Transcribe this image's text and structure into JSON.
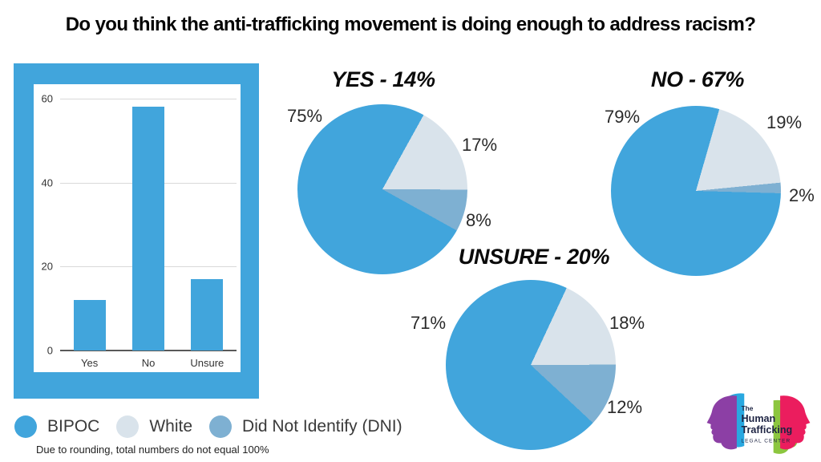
{
  "title": "Do you think the anti-trafficking movement is doing enough to address racism?",
  "colors": {
    "bipoc": "#41A5DC",
    "white": "#D9E3EB",
    "dni": "#7EB0D2"
  },
  "legend": {
    "items": [
      {
        "group": "bipoc",
        "label": "BIPOC"
      },
      {
        "group": "white",
        "label": "White"
      },
      {
        "group": "dni",
        "label": "Did Not Identify (DNI)"
      }
    ]
  },
  "footnote": "Due to rounding, total numbers do not equal 100%",
  "chart_data": [
    {
      "type": "bar",
      "categories": [
        "Yes",
        "No",
        "Unsure"
      ],
      "values": [
        12,
        58,
        17
      ],
      "title": "",
      "xlabel": "",
      "ylabel": "",
      "ylim": [
        0,
        60
      ],
      "yticks": [
        0,
        20,
        40,
        60
      ],
      "grid": true
    },
    {
      "type": "pie",
      "title": "YES - 14%",
      "start_deg": 29,
      "slices": [
        {
          "group": "white",
          "label": "White",
          "pct": 17
        },
        {
          "group": "dni",
          "label": "Did Not Identify (DNI)",
          "pct": 8
        },
        {
          "group": "bipoc",
          "label": "BIPOC",
          "pct": 75
        }
      ],
      "pct_labels": [
        "75%",
        "17%",
        "8%"
      ]
    },
    {
      "type": "pie",
      "title": "NO - 67%",
      "start_deg": 16,
      "slices": [
        {
          "group": "white",
          "label": "White",
          "pct": 19
        },
        {
          "group": "dni",
          "label": "Did Not Identify (DNI)",
          "pct": 2
        },
        {
          "group": "bipoc",
          "label": "BIPOC",
          "pct": 79
        }
      ],
      "pct_labels": [
        "79%",
        "19%",
        "2%"
      ]
    },
    {
      "type": "pie",
      "title": "UNSURE - 20%",
      "start_deg": 25,
      "slices": [
        {
          "group": "white",
          "label": "White",
          "pct": 18
        },
        {
          "group": "dni",
          "label": "Did Not Identify (DNI)",
          "pct": 12
        },
        {
          "group": "bipoc",
          "label": "BIPOC",
          "pct": 71
        }
      ],
      "pct_labels": [
        "71%",
        "18%",
        "12%"
      ]
    }
  ],
  "logo": {
    "line1": "The",
    "line2": "Human",
    "line3": "Trafficking",
    "line4": "LEGAL CENTER",
    "colors": {
      "purple": "#8C3FA5",
      "cyan": "#29A8E0",
      "pink": "#EB1D5E",
      "green": "#8CC63F",
      "navy": "#1E2443"
    }
  }
}
